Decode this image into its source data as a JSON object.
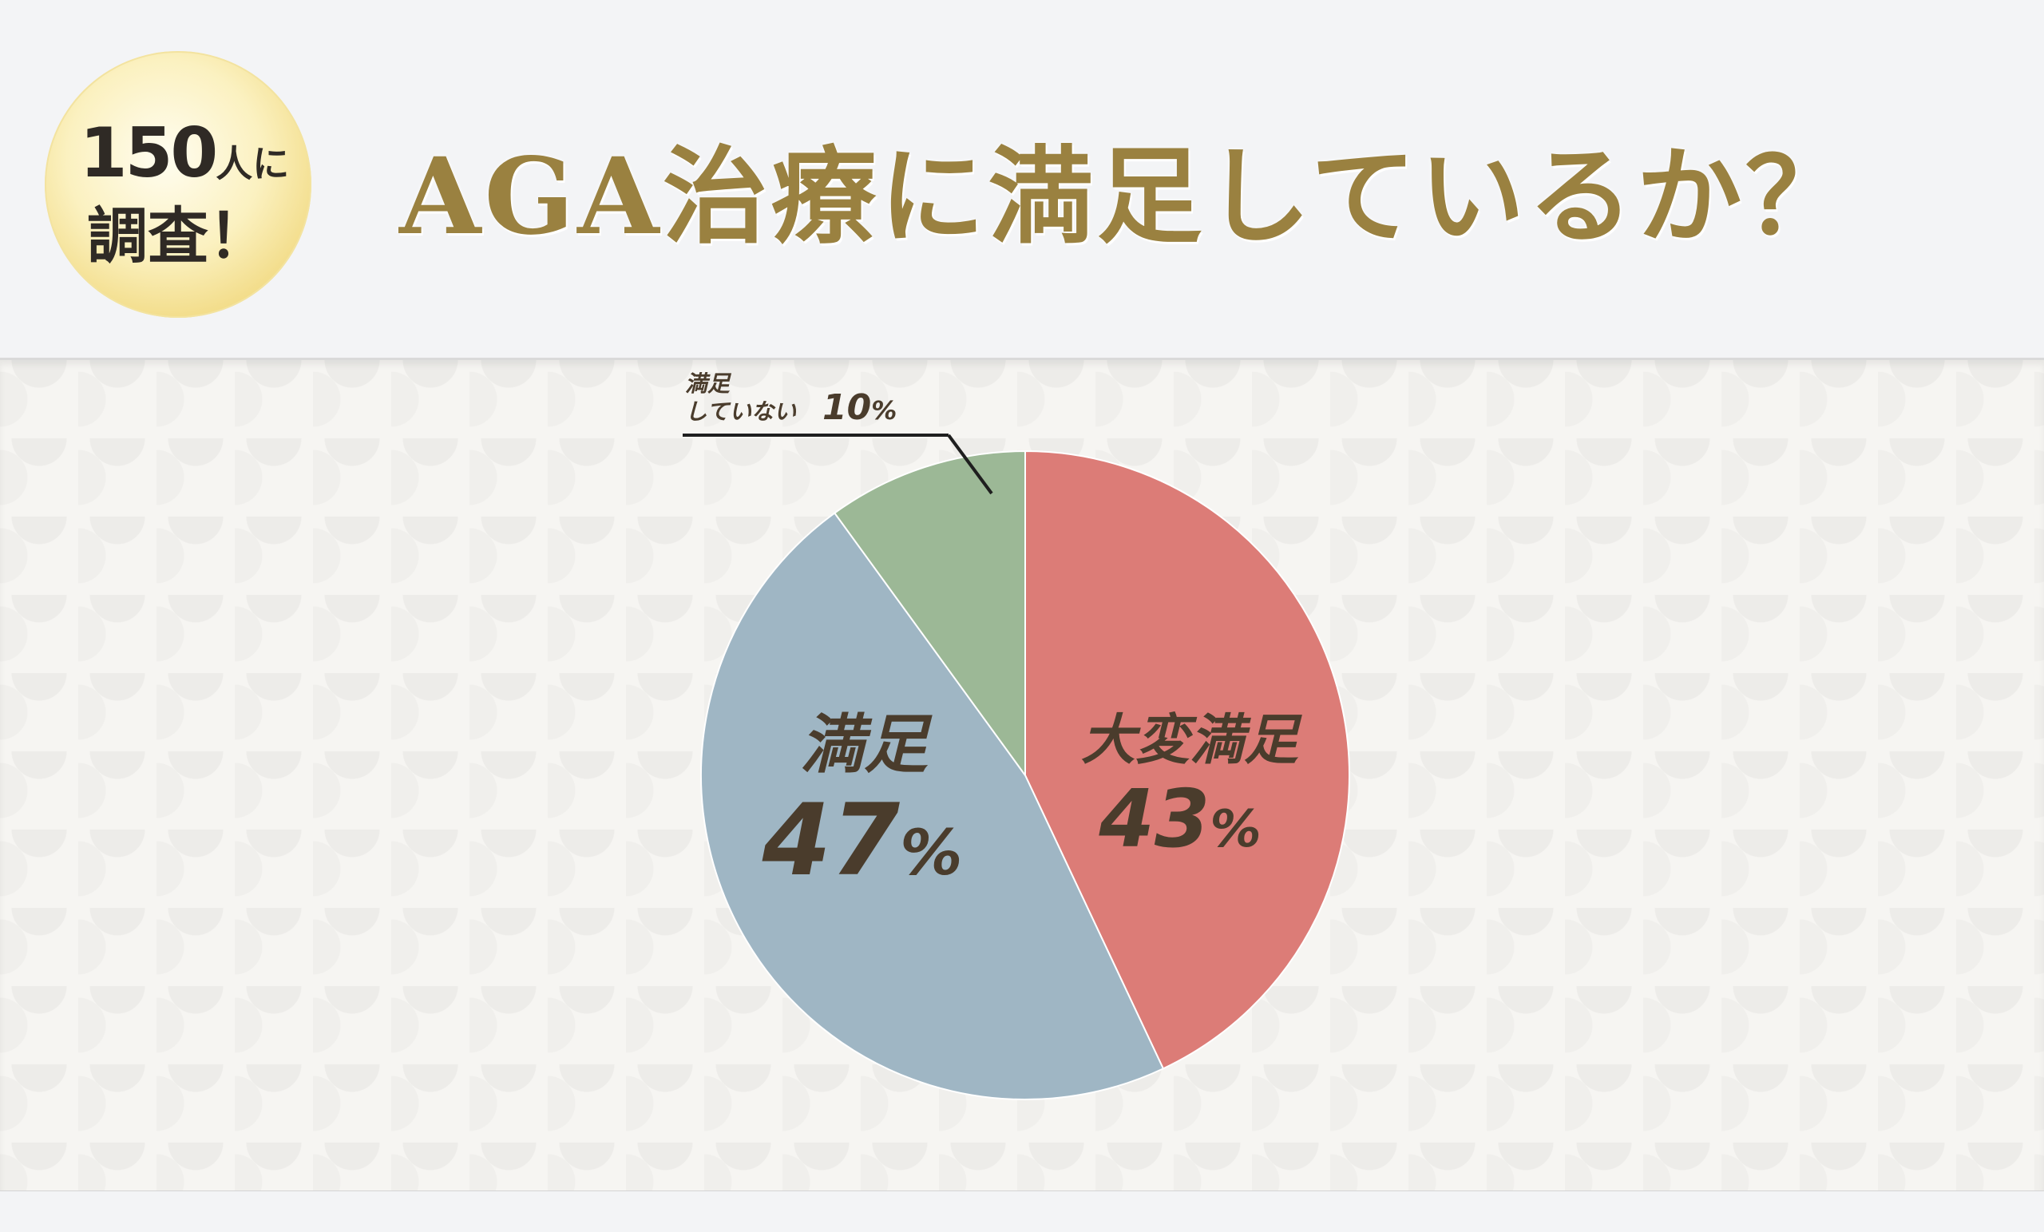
{
  "badge": {
    "count": "150",
    "count_suffix": "人に",
    "line2": "調査！"
  },
  "title": "AGA治療に満足しているか？",
  "chart_data": {
    "type": "pie",
    "title": "AGA治療に満足しているか？",
    "slices": [
      {
        "label": "大変満足",
        "value": 43,
        "display": "43",
        "unit": "%",
        "color": "#dc7c77"
      },
      {
        "label": "満足",
        "value": 47,
        "display": "47",
        "unit": "%",
        "color": "#9fb6c4"
      },
      {
        "label_line1": "満足",
        "label_line2": "していない",
        "label": "満足していない",
        "value": 10,
        "display": "10",
        "unit": "%",
        "color": "#9cb896"
      }
    ]
  }
}
